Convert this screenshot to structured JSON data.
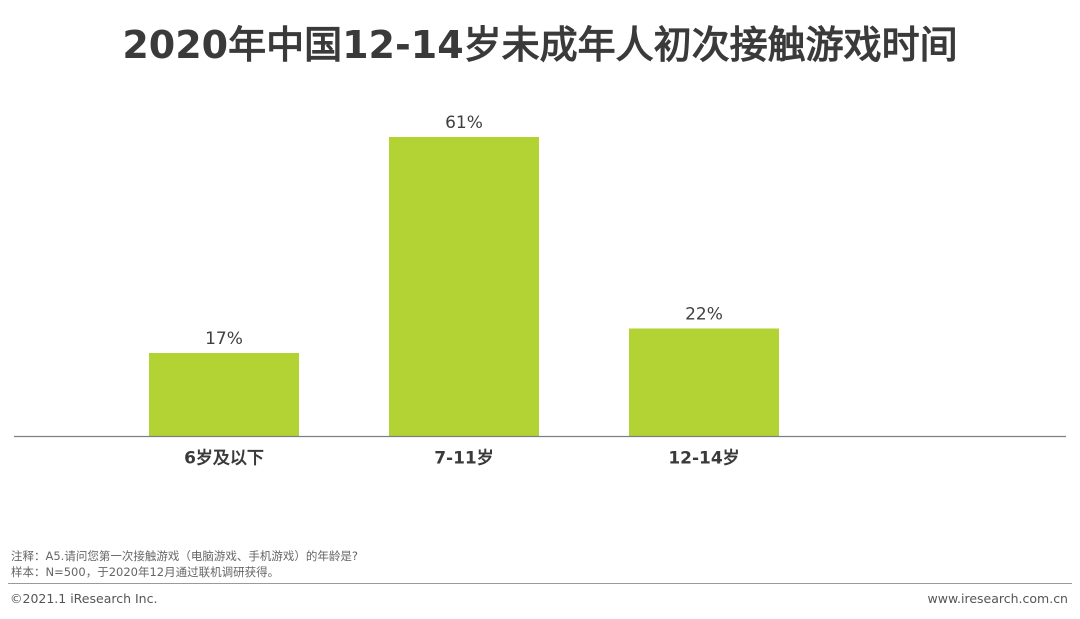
{
  "header": {
    "title": "2020年中国12-14岁未成年人初次接触游戏时间"
  },
  "chart_data": {
    "type": "bar",
    "title": "2020年中国12-14岁未成年人初次接触游戏时间",
    "categories": [
      "6岁及以下",
      "7-11岁",
      "12-14岁"
    ],
    "values": [
      17,
      61,
      22
    ],
    "value_labels": [
      "17%",
      "61%",
      "22%"
    ],
    "unit": "%",
    "xlabel": "",
    "ylabel": "",
    "ylim": [
      0,
      61
    ],
    "grid": false,
    "legend": "none",
    "bar_color": "#b3d334",
    "axis_color": "#7f7f7f"
  },
  "notes": {
    "line1": "注释：A5.请问您第一次接触游戏（电脑游戏、手机游戏）的年龄是?",
    "line2": "样本：N=500，于2020年12月通过联机调研获得。"
  },
  "footer": {
    "copyright": "©2021.1 iResearch Inc.",
    "url": "www.iresearch.com.cn"
  }
}
